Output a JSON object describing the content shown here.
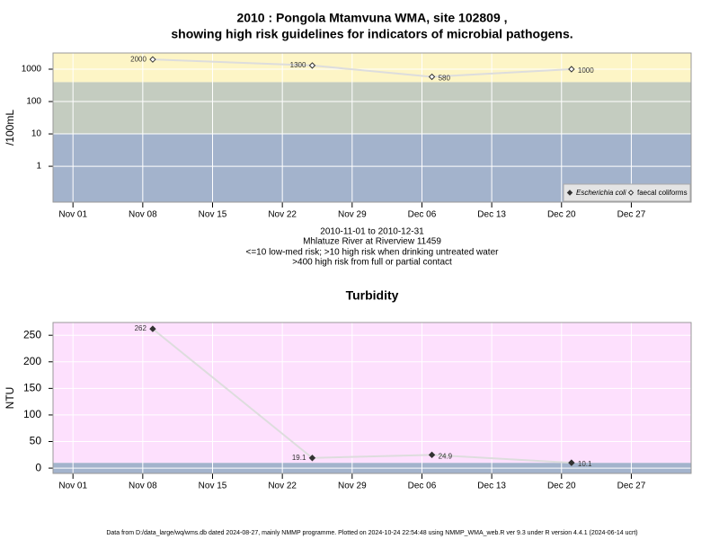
{
  "chart_data": [
    {
      "type": "line",
      "title": [
        "2010 : Pongola Mtamvuna WMA, site 102809 ,",
        "showing high risk guidelines for indicators of microbial pathogens."
      ],
      "notes": [
        "2010-11-01 to 2010-12-31",
        "Mhlatuze River at Riverview 11459",
        "<=10 low-med risk; >10 high risk when drinking untreated water",
        ">400 high risk from full or partial contact"
      ],
      "y_label": "/100mL",
      "log_y": true,
      "x": [
        "2010-11-09",
        "2010-11-25",
        "2010-12-07",
        "2010-12-21"
      ],
      "series": [
        {
          "name": "Escherichia coli",
          "color": "#333333",
          "marker": "filled",
          "values": [
            null,
            null,
            null,
            null
          ]
        },
        {
          "name": "faecal coliforms",
          "color": "#333333",
          "marker": "open",
          "values": [
            2000,
            1300,
            580,
            1000
          ]
        }
      ],
      "xlim": [
        "2010-10-30",
        "2011-01-02"
      ],
      "xticks": [
        {
          "value": "2010-11-01",
          "label": "Nov 01"
        },
        {
          "value": "2010-11-08",
          "label": "Nov 08"
        },
        {
          "value": "2010-11-15",
          "label": "Nov 15"
        },
        {
          "value": "2010-11-22",
          "label": "Nov 22"
        },
        {
          "value": "2010-11-29",
          "label": "Nov 29"
        },
        {
          "value": "2010-12-06",
          "label": "Dec 06"
        },
        {
          "value": "2010-12-13",
          "label": "Dec 13"
        },
        {
          "value": "2010-12-20",
          "label": "Dec 20"
        },
        {
          "value": "2010-12-27",
          "label": "Dec 27"
        }
      ],
      "ylim": [
        0.078,
        3162
      ],
      "yticks": [
        1,
        10,
        100,
        1000
      ],
      "band_breaks": [
        10,
        400
      ],
      "band_colors": [
        "#a3b3cc",
        "#c4ccc0",
        "#fdf5c6"
      ],
      "line_color": "#dddddd",
      "grid": true,
      "legend": "bottom-right"
    },
    {
      "type": "line",
      "title": "Turbidity",
      "y_label": "NTU",
      "log_y": false,
      "x": [
        "2010-11-09",
        "2010-11-25",
        "2010-12-07",
        "2010-12-21"
      ],
      "values": [
        262,
        19.1,
        24.9,
        10.1
      ],
      "color": "#333333",
      "xlim": [
        "2010-10-30",
        "2011-01-02"
      ],
      "xticks": [
        {
          "value": "2010-11-01",
          "label": "Nov 01"
        },
        {
          "value": "2010-11-08",
          "label": "Nov 08"
        },
        {
          "value": "2010-11-15",
          "label": "Nov 15"
        },
        {
          "value": "2010-11-22",
          "label": "Nov 22"
        },
        {
          "value": "2010-11-29",
          "label": "Nov 29"
        },
        {
          "value": "2010-12-06",
          "label": "Dec 06"
        },
        {
          "value": "2010-12-13",
          "label": "Dec 13"
        },
        {
          "value": "2010-12-20",
          "label": "Dec 20"
        },
        {
          "value": "2010-12-27",
          "label": "Dec 27"
        }
      ],
      "ylim": [
        -10,
        274
      ],
      "yticks": [
        0,
        50,
        100,
        150,
        200,
        250
      ],
      "band_breaks": [
        10
      ],
      "band_colors": [
        "#a3b3cc",
        "#fde0fd"
      ],
      "line_color": "#dddddd",
      "grid": true
    }
  ],
  "footer": "Data from D:/data_large/wq/wms.db dated 2024-08-27, mainly NMMP programme. Plotted on 2024-10-24 22:54:48 using NMMP_WMA_web.R ver 9.3 under R version 4.4.1 (2024-06-14 ucrt)"
}
